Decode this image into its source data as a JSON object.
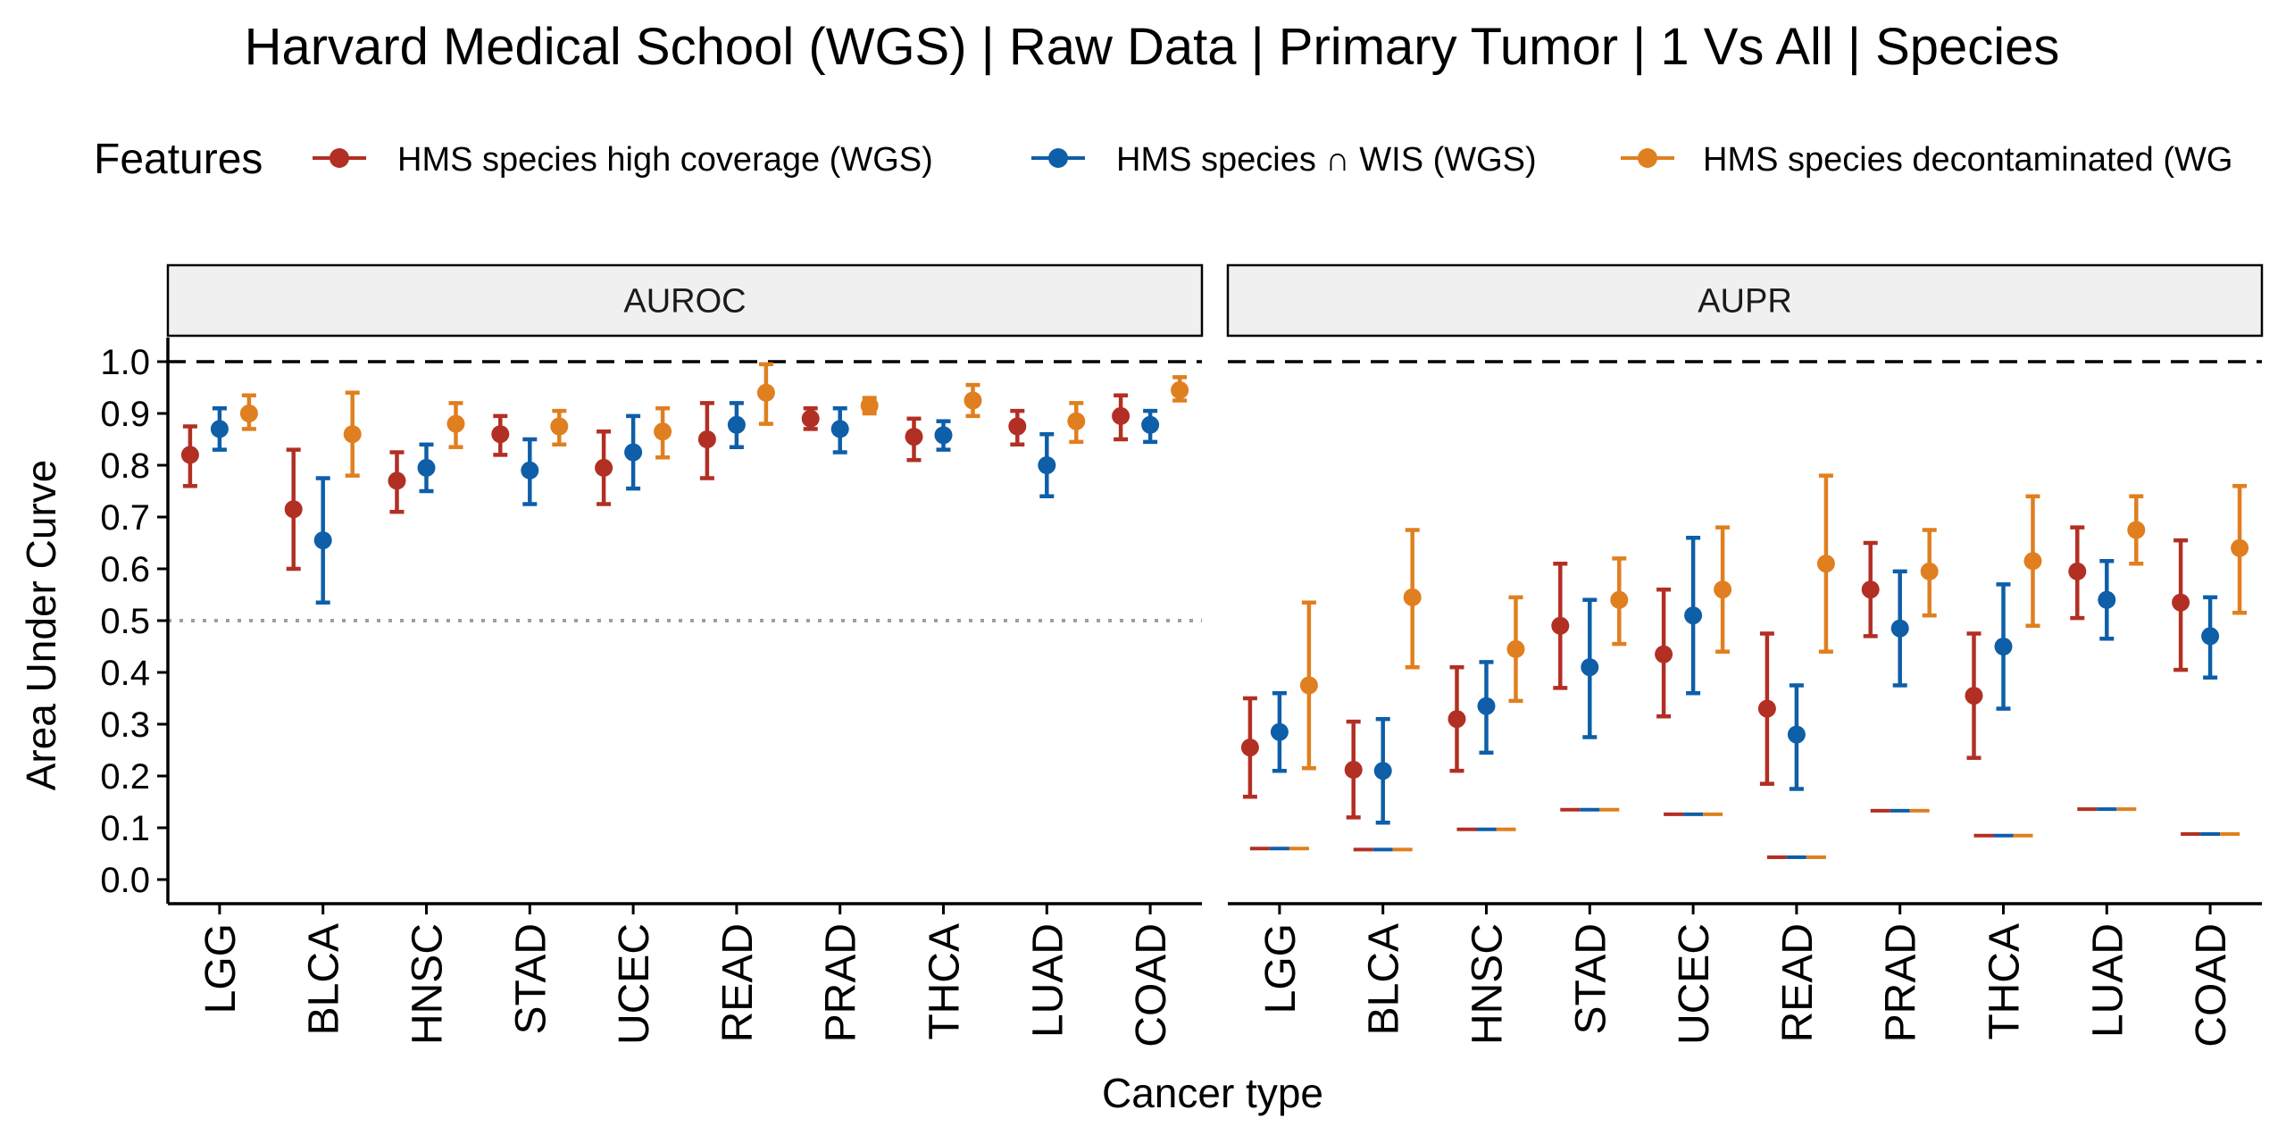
{
  "chart_data": {
    "type": "errorbar",
    "title": "Harvard Medical School (WGS) | Raw Data | Primary Tumor | 1 Vs All | Species",
    "xlabel": "Cancer type",
    "ylabel": "Area Under Curve",
    "ylim": [
      0,
      1
    ],
    "yticks": [
      "0.0",
      "0.1",
      "0.2",
      "0.3",
      "0.4",
      "0.5",
      "0.6",
      "0.7",
      "0.8",
      "0.9",
      "1.0"
    ],
    "legend": {
      "title": "Features",
      "placement": "top"
    },
    "categories": [
      "LGG",
      "BLCA",
      "HNSC",
      "STAD",
      "UCEC",
      "READ",
      "PRAD",
      "THCA",
      "LUAD",
      "COAD"
    ],
    "series": [
      {
        "name": "HMS species high coverage (WGS)",
        "color": "#b22f23"
      },
      {
        "name": "HMS species ∩ WIS (WGS)",
        "color": "#0e5ea8"
      },
      {
        "name": "HMS species decontaminated (WG",
        "color": "#e07f1f"
      }
    ],
    "reference_lines": {
      "max": 1.0,
      "chance_auroc": 0.5
    },
    "panels": [
      {
        "label": "AUROC",
        "values": [
          [
            [
              0.82,
              0.76,
              0.875
            ],
            [
              0.87,
              0.83,
              0.91
            ],
            [
              0.9,
              0.87,
              0.935
            ]
          ],
          [
            [
              0.715,
              0.6,
              0.83
            ],
            [
              0.655,
              0.535,
              0.775
            ],
            [
              0.86,
              0.78,
              0.94
            ]
          ],
          [
            [
              0.77,
              0.71,
              0.825
            ],
            [
              0.795,
              0.75,
              0.84
            ],
            [
              0.88,
              0.835,
              0.92
            ]
          ],
          [
            [
              0.86,
              0.82,
              0.895
            ],
            [
              0.79,
              0.725,
              0.85
            ],
            [
              0.875,
              0.84,
              0.905
            ]
          ],
          [
            [
              0.795,
              0.725,
              0.865
            ],
            [
              0.825,
              0.755,
              0.895
            ],
            [
              0.865,
              0.815,
              0.91
            ]
          ],
          [
            [
              0.85,
              0.775,
              0.92
            ],
            [
              0.878,
              0.835,
              0.92
            ],
            [
              0.94,
              0.88,
              0.995
            ]
          ],
          [
            [
              0.89,
              0.87,
              0.91
            ],
            [
              0.87,
              0.825,
              0.91
            ],
            [
              0.915,
              0.9,
              0.93
            ]
          ],
          [
            [
              0.855,
              0.81,
              0.89
            ],
            [
              0.858,
              0.83,
              0.885
            ],
            [
              0.925,
              0.895,
              0.955
            ]
          ],
          [
            [
              0.875,
              0.84,
              0.905
            ],
            [
              0.8,
              0.74,
              0.86
            ],
            [
              0.885,
              0.845,
              0.92
            ]
          ],
          [
            [
              0.895,
              0.85,
              0.935
            ],
            [
              0.878,
              0.845,
              0.905
            ],
            [
              0.945,
              0.925,
              0.97
            ]
          ]
        ],
        "null_values": null
      },
      {
        "label": "AUPR",
        "values": [
          [
            [
              0.255,
              0.16,
              0.35
            ],
            [
              0.285,
              0.21,
              0.36
            ],
            [
              0.375,
              0.215,
              0.535
            ]
          ],
          [
            [
              0.212,
              0.12,
              0.305
            ],
            [
              0.21,
              0.11,
              0.31
            ],
            [
              0.545,
              0.41,
              0.675
            ]
          ],
          [
            [
              0.31,
              0.21,
              0.41
            ],
            [
              0.335,
              0.245,
              0.42
            ],
            [
              0.445,
              0.345,
              0.545
            ]
          ],
          [
            [
              0.49,
              0.37,
              0.61
            ],
            [
              0.41,
              0.275,
              0.54
            ],
            [
              0.54,
              0.455,
              0.62
            ]
          ],
          [
            [
              0.435,
              0.315,
              0.56
            ],
            [
              0.51,
              0.36,
              0.66
            ],
            [
              0.56,
              0.44,
              0.68
            ]
          ],
          [
            [
              0.33,
              0.185,
              0.475
            ],
            [
              0.28,
              0.175,
              0.375
            ],
            [
              0.61,
              0.44,
              0.78
            ]
          ],
          [
            [
              0.56,
              0.47,
              0.65
            ],
            [
              0.485,
              0.375,
              0.595
            ],
            [
              0.595,
              0.51,
              0.675
            ]
          ],
          [
            [
              0.355,
              0.235,
              0.475
            ],
            [
              0.45,
              0.33,
              0.57
            ],
            [
              0.615,
              0.49,
              0.74
            ]
          ],
          [
            [
              0.595,
              0.505,
              0.68
            ],
            [
              0.54,
              0.465,
              0.615
            ],
            [
              0.675,
              0.61,
              0.74
            ]
          ],
          [
            [
              0.535,
              0.405,
              0.655
            ],
            [
              0.47,
              0.39,
              0.545
            ],
            [
              0.64,
              0.515,
              0.76
            ]
          ]
        ],
        "null_values": [
          0.06,
          0.058,
          0.097,
          0.135,
          0.126,
          0.043,
          0.133,
          0.085,
          0.136,
          0.088
        ]
      }
    ]
  }
}
